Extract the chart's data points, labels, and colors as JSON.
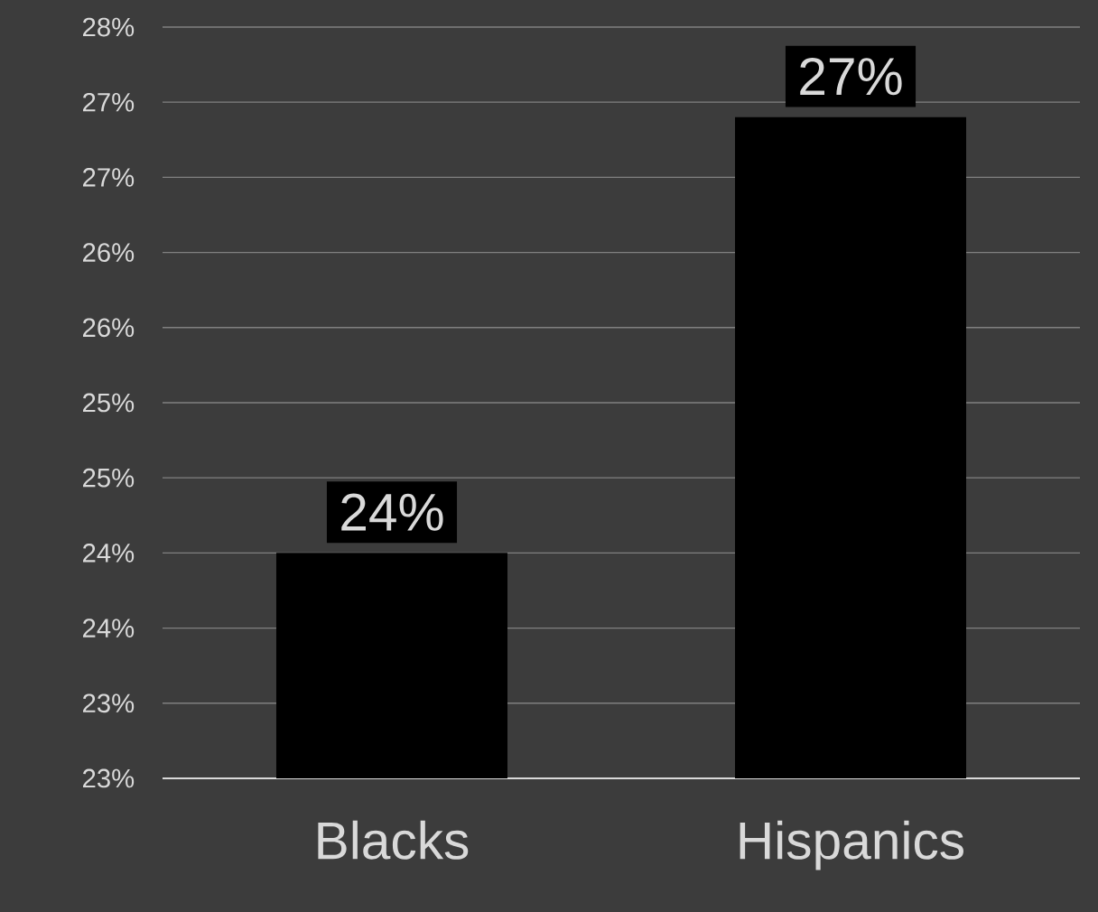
{
  "chart_data": {
    "type": "bar",
    "categories": [
      "Blacks",
      "Hispanics"
    ],
    "values": [
      24.1,
      27.0
    ],
    "value_labels": [
      "24%",
      "27%"
    ],
    "color": "#000000",
    "ylim": [
      22.6,
      27.6
    ],
    "yticks": [
      {
        "value": 22.6,
        "label": "23%"
      },
      {
        "value": 23.1,
        "label": "23%"
      },
      {
        "value": 23.6,
        "label": "24%"
      },
      {
        "value": 24.1,
        "label": "24%"
      },
      {
        "value": 24.6,
        "label": "25%"
      },
      {
        "value": 25.1,
        "label": "25%"
      },
      {
        "value": 25.6,
        "label": "26%"
      },
      {
        "value": 26.1,
        "label": "26%"
      },
      {
        "value": 26.6,
        "label": "27%"
      },
      {
        "value": 27.1,
        "label": "27%"
      },
      {
        "value": 27.6,
        "label": "28%"
      }
    ],
    "grid": "y"
  }
}
